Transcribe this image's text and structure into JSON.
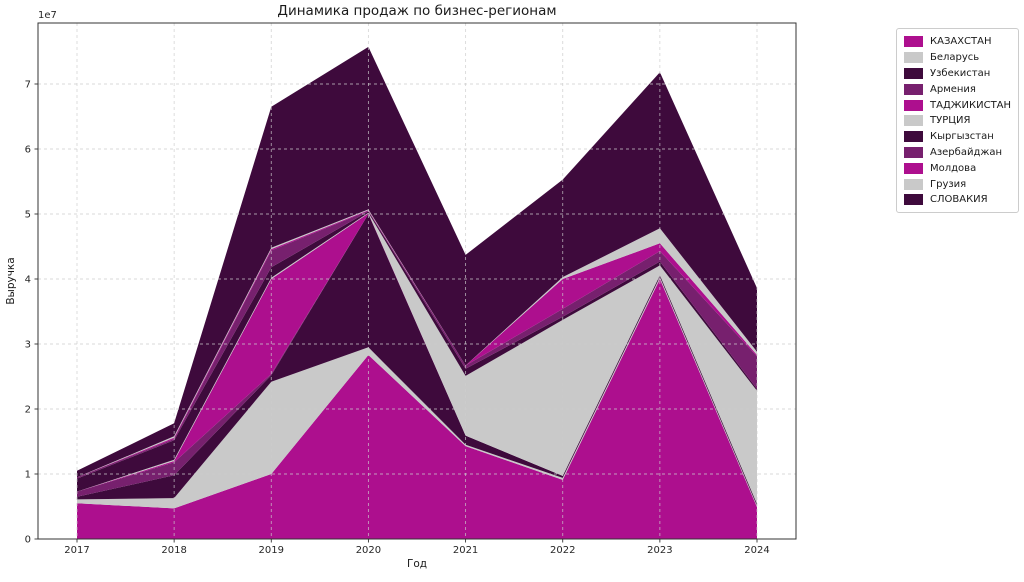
{
  "title": "Динамика продаж по бизнес-регионам",
  "chart_data": {
    "type": "area",
    "stacked": true,
    "title": "Динамика продаж по бизнес-регионам",
    "xlabel": "Год",
    "ylabel": "Выручка",
    "y_scale_label": "1e7",
    "x": [
      2017,
      2018,
      2019,
      2020,
      2021,
      2022,
      2023,
      2024
    ],
    "ylim": [
      0,
      79000000
    ],
    "yticks": [
      0,
      10000000,
      20000000,
      30000000,
      40000000,
      50000000,
      60000000,
      70000000
    ],
    "ytick_labels": [
      "0",
      "1",
      "2",
      "3",
      "4",
      "5",
      "6",
      "7"
    ],
    "grid": true,
    "grid_style": "dashed",
    "legend_position": "upper-right-outside",
    "palette": {
      "magenta": "#ad0f8e",
      "lightgray": "#c9c9c9",
      "darkpurple": "#3e0a3c",
      "mediumpurple": "#77206e"
    },
    "series": [
      {
        "name": "КАЗАХСТАН",
        "color": "#ad0f8e",
        "values": [
          5500000,
          4700000,
          10000000,
          28300000,
          14300000,
          9100000,
          40000000,
          4900000
        ]
      },
      {
        "name": "Беларусь",
        "color": "#c9c9c9",
        "values": [
          600000,
          1600000,
          14200000,
          1200000,
          200000,
          300000,
          300000,
          200000
        ]
      },
      {
        "name": "Узбекистан",
        "color": "#3e0a3c",
        "values": [
          400000,
          3500000,
          1000000,
          20500000,
          1400000,
          300000,
          300000,
          300000
        ]
      },
      {
        "name": "Армения",
        "color": "#77206e",
        "values": [
          800000,
          2000000,
          200000,
          0,
          0,
          0,
          0,
          0
        ]
      },
      {
        "name": "ТАДЖИКИСТАН",
        "color": "#ad0f8e",
        "values": [
          0,
          200000,
          14600000,
          100000,
          0,
          0,
          0,
          0
        ]
      },
      {
        "name": "ТУРЦИЯ",
        "color": "#c9c9c9",
        "values": [
          0,
          200000,
          200000,
          100000,
          9200000,
          24000000,
          1500000,
          17400000
        ]
      },
      {
        "name": "Кыргызстан",
        "color": "#3e0a3c",
        "values": [
          2000000,
          3000000,
          1600000,
          200000,
          1100000,
          500000,
          600000,
          300000
        ]
      },
      {
        "name": "Азербайджан",
        "color": "#77206e",
        "values": [
          200000,
          200000,
          2600000,
          100000,
          500000,
          1200000,
          1600000,
          5000000
        ]
      },
      {
        "name": "Молдова",
        "color": "#ad0f8e",
        "values": [
          0,
          200000,
          200000,
          100000,
          0,
          4600000,
          1200000,
          200000
        ]
      },
      {
        "name": "Грузия",
        "color": "#c9c9c9",
        "values": [
          0,
          200000,
          200000,
          100000,
          0,
          300000,
          2300000,
          500000
        ]
      },
      {
        "name": "СЛОВАКИЯ",
        "color": "#3e0a3c",
        "values": [
          1000000,
          2000000,
          21700000,
          25000000,
          17000000,
          15000000,
          24000000,
          9800000
        ]
      }
    ]
  }
}
